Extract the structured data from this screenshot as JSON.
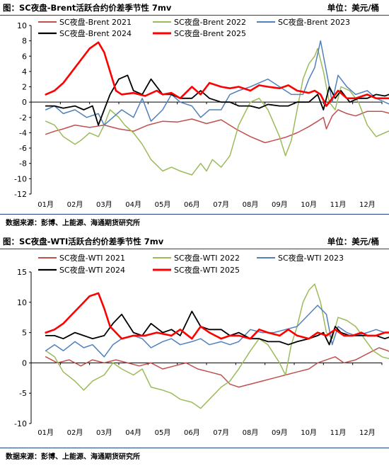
{
  "chart_data": [
    {
      "type": "line",
      "title": "图：SC夜盘-Brent活跃合约价差季节性 7mv",
      "unit": "单位：美元/桶",
      "source": "数据来源：彭博、上能源、海通期货研究所",
      "x_ticks": [
        "01月",
        "02月",
        "03月",
        "04月",
        "05月",
        "06月",
        "07月",
        "08月",
        "09月",
        "10月",
        "11月",
        "12月"
      ],
      "ylim": [
        -12,
        10
      ],
      "y_ticks": [
        10,
        8,
        6,
        4,
        2,
        0,
        -2,
        -4,
        -6,
        -8,
        -10,
        -12
      ],
      "legend_position": "top",
      "series": [
        {
          "name": "SC夜盘-Brent 2021",
          "color": "#c0504d",
          "width": 1.5,
          "x": [
            0.0,
            0.3,
            0.6,
            1.0,
            1.5,
            2.0,
            2.5,
            3.0,
            3.5,
            4.0,
            4.5,
            5.0,
            5.5,
            6.0,
            6.5,
            7.0,
            7.5,
            7.8,
            8.2,
            8.6,
            9.0,
            9.3,
            9.5,
            9.6,
            9.8,
            10.0,
            10.3,
            10.6,
            11.0,
            11.5,
            11.9
          ],
          "y": [
            -4.2,
            -3.8,
            -3.5,
            -3.0,
            -3.3,
            -3.0,
            -3.5,
            -3.8,
            -3.0,
            -2.5,
            -2.6,
            -2.2,
            -2.8,
            -2.3,
            -3.5,
            -4.5,
            -5.3,
            -5.0,
            -4.6,
            -4.0,
            -3.2,
            -2.5,
            -2.0,
            -3.5,
            -1.8,
            -1.0,
            -1.5,
            -1.8,
            -1.2,
            -1.2,
            -1.6
          ]
        },
        {
          "name": "SC夜盘-Brent 2022",
          "color": "#9bbb59",
          "width": 1.5,
          "x": [
            0.0,
            0.3,
            0.6,
            1.0,
            1.2,
            1.5,
            1.8,
            2.0,
            2.2,
            2.5,
            2.7,
            3.0,
            3.3,
            3.6,
            4.0,
            4.3,
            4.6,
            5.0,
            5.3,
            5.5,
            5.7,
            6.0,
            6.3,
            6.6,
            7.0,
            7.3,
            7.6,
            8.0,
            8.2,
            8.4,
            8.6,
            8.8,
            9.0,
            9.2,
            9.3,
            9.5,
            9.7,
            9.9,
            10.1,
            10.4,
            10.7,
            11.0,
            11.3,
            11.6,
            11.9
          ],
          "y": [
            -2.5,
            -3.0,
            -4.5,
            -5.5,
            -5.0,
            -4.0,
            -4.5,
            -3.0,
            -1.0,
            -2.0,
            -3.0,
            -4.0,
            -5.5,
            -7.5,
            -9.0,
            -8.5,
            -9.0,
            -9.5,
            -8.0,
            -9.0,
            -7.5,
            -8.5,
            -7.0,
            -3.0,
            0.0,
            0.5,
            -1.0,
            -4.5,
            -7.0,
            -5.0,
            -1.0,
            3.0,
            5.0,
            6.0,
            7.0,
            4.0,
            0.0,
            -1.0,
            2.0,
            1.5,
            0.0,
            -3.0,
            -4.5,
            -4.0,
            -3.5
          ]
        },
        {
          "name": "SC夜盘-Brent 2023",
          "color": "#4f81bd",
          "width": 1.5,
          "x": [
            0.0,
            0.3,
            0.6,
            1.0,
            1.4,
            1.8,
            2.0,
            2.3,
            2.6,
            3.0,
            3.3,
            3.6,
            4.0,
            4.3,
            4.6,
            5.0,
            5.3,
            5.6,
            6.0,
            6.3,
            6.6,
            7.0,
            7.3,
            7.6,
            8.0,
            8.4,
            8.8,
            9.0,
            9.2,
            9.4,
            9.6,
            9.8,
            10.0,
            10.3,
            10.6,
            11.0,
            11.3,
            11.6,
            11.9
          ],
          "y": [
            -1.0,
            -0.5,
            -1.5,
            -1.0,
            -2.0,
            -1.5,
            -3.0,
            -2.0,
            -1.0,
            -2.0,
            0.5,
            -2.5,
            -1.0,
            1.0,
            0.0,
            -0.5,
            -2.0,
            -1.0,
            -1.0,
            1.0,
            1.5,
            2.0,
            2.5,
            3.0,
            2.0,
            1.0,
            1.0,
            3.0,
            4.5,
            8.0,
            4.0,
            0.0,
            3.5,
            2.0,
            1.0,
            1.5,
            0.5,
            0.0,
            -0.5
          ]
        },
        {
          "name": "SC夜盘-Brent 2024",
          "color": "#000000",
          "width": 1.8,
          "x": [
            0.0,
            0.3,
            0.6,
            1.0,
            1.3,
            1.6,
            1.8,
            2.0,
            2.2,
            2.5,
            2.8,
            3.0,
            3.3,
            3.6,
            4.0,
            4.3,
            4.6,
            5.0,
            5.3,
            5.6,
            6.0,
            6.3,
            6.6,
            7.0,
            7.3,
            7.6,
            8.0,
            8.3,
            8.6,
            9.0,
            9.3,
            9.5,
            9.7,
            9.9,
            10.1,
            10.4,
            10.7,
            11.0,
            11.3,
            11.6,
            11.9
          ],
          "y": [
            -0.5,
            -0.5,
            -0.8,
            -0.5,
            -1.0,
            -0.5,
            -3.0,
            -1.0,
            1.0,
            3.0,
            3.5,
            1.5,
            1.0,
            3.0,
            1.0,
            1.0,
            0.5,
            0.5,
            1.5,
            0.5,
            0.0,
            0.0,
            -0.5,
            -0.5,
            -0.8,
            -0.3,
            -0.5,
            -0.5,
            0.0,
            0.0,
            1.0,
            -1.0,
            2.0,
            0.5,
            1.5,
            0.0,
            0.5,
            0.5,
            1.0,
            0.8,
            1.2
          ]
        },
        {
          "name": "SC夜盘-Brent 2025",
          "color": "#ff0000",
          "width": 2.6,
          "x": [
            0.0,
            0.3,
            0.6,
            0.9,
            1.2,
            1.5,
            1.8,
            2.0,
            2.2,
            2.4,
            2.6,
            3.0,
            3.4,
            3.8,
            4.0,
            4.3,
            4.6,
            5.0,
            5.3,
            5.6,
            6.0,
            6.3,
            6.6,
            7.0,
            7.3,
            7.6,
            8.0,
            8.3,
            8.6,
            9.0,
            9.2,
            9.4,
            9.6,
            9.8,
            10.0,
            10.3,
            10.6,
            11.0,
            11.3,
            11.6,
            11.9
          ],
          "y": [
            1.0,
            1.5,
            2.5,
            4.0,
            5.5,
            7.0,
            7.8,
            6.5,
            4.0,
            1.5,
            1.0,
            1.2,
            0.8,
            1.5,
            1.0,
            1.2,
            0.5,
            2.0,
            1.0,
            2.5,
            2.0,
            1.8,
            2.0,
            1.5,
            2.2,
            2.0,
            1.8,
            2.2,
            1.5,
            1.2,
            1.5,
            1.0,
            -0.5,
            0.5,
            1.5,
            0.5,
            0.5,
            1.0,
            0.5,
            0.5,
            0.5
          ]
        }
      ]
    },
    {
      "type": "line",
      "title": "图：SC夜盘-WTI活跃合约价差季节性 7mv",
      "unit": "单位：美元/桶",
      "source": "数据来源：彭博、上能源、海通期货研究所",
      "x_ticks": [
        "01月",
        "02月",
        "03月",
        "04月",
        "05月",
        "06月",
        "07月",
        "08月",
        "09月",
        "10月",
        "11月",
        "12月"
      ],
      "ylim": [
        -10,
        15
      ],
      "y_ticks": [
        15,
        10,
        5,
        0,
        -5,
        -10
      ],
      "legend_position": "top",
      "series": [
        {
          "name": "SC夜盘-WTI 2021",
          "color": "#c0504d",
          "width": 1.5,
          "x": [
            0.0,
            0.4,
            0.8,
            1.2,
            1.6,
            2.0,
            2.4,
            2.8,
            3.2,
            3.6,
            4.0,
            4.4,
            4.8,
            5.2,
            5.6,
            6.0,
            6.3,
            6.6,
            7.0,
            7.4,
            7.8,
            8.2,
            8.6,
            9.0,
            9.3,
            9.6,
            9.9,
            10.2,
            10.6,
            11.0,
            11.4,
            11.7,
            11.9
          ],
          "y": [
            1.0,
            0.0,
            0.5,
            -0.5,
            0.5,
            0.0,
            0.5,
            0.0,
            -0.5,
            0.0,
            -1.0,
            -0.5,
            0.0,
            -1.0,
            -1.5,
            -2.0,
            -3.5,
            -4.0,
            -3.5,
            -3.0,
            -2.5,
            -2.0,
            -1.5,
            -1.0,
            0.0,
            0.5,
            1.0,
            0.0,
            0.5,
            1.5,
            2.5,
            2.0,
            1.5
          ]
        },
        {
          "name": "SC夜盘-WTI 2022",
          "color": "#9bbb59",
          "width": 1.5,
          "x": [
            0.0,
            0.3,
            0.6,
            1.0,
            1.3,
            1.6,
            2.0,
            2.3,
            2.6,
            3.0,
            3.3,
            3.6,
            4.0,
            4.3,
            4.6,
            5.0,
            5.3,
            5.6,
            6.0,
            6.3,
            6.6,
            7.0,
            7.3,
            7.6,
            8.0,
            8.2,
            8.4,
            8.6,
            8.8,
            9.0,
            9.2,
            9.4,
            9.6,
            9.8,
            10.0,
            10.3,
            10.6,
            10.9,
            11.2,
            11.5,
            11.9
          ],
          "y": [
            2.0,
            1.0,
            -1.5,
            -3.0,
            -4.5,
            -3.0,
            -2.0,
            0.0,
            -1.0,
            -2.0,
            -1.0,
            -4.0,
            -4.5,
            -5.0,
            -6.0,
            -6.5,
            -7.5,
            -6.0,
            -4.0,
            -3.0,
            -1.0,
            2.0,
            4.0,
            3.0,
            0.0,
            -2.0,
            3.0,
            6.0,
            10.0,
            12.0,
            13.0,
            10.0,
            5.0,
            4.0,
            7.5,
            7.0,
            6.0,
            4.0,
            2.0,
            1.0,
            0.5
          ]
        },
        {
          "name": "SC夜盘-WTI 2023",
          "color": "#4f81bd",
          "width": 1.5,
          "x": [
            0.0,
            0.3,
            0.6,
            1.0,
            1.3,
            1.6,
            2.0,
            2.3,
            2.6,
            3.0,
            3.3,
            3.6,
            4.0,
            4.3,
            4.6,
            5.0,
            5.3,
            5.6,
            6.0,
            6.3,
            6.6,
            7.0,
            7.4,
            7.8,
            8.2,
            8.6,
            9.0,
            9.3,
            9.6,
            9.8,
            10.0,
            10.3,
            10.6,
            11.0,
            11.3,
            11.6,
            11.9
          ],
          "y": [
            2.0,
            3.0,
            2.0,
            3.5,
            2.5,
            3.0,
            1.0,
            3.0,
            4.0,
            4.5,
            4.0,
            2.5,
            3.5,
            4.0,
            3.0,
            3.5,
            4.0,
            3.0,
            3.5,
            3.0,
            3.5,
            5.5,
            5.0,
            5.0,
            5.5,
            6.0,
            8.0,
            9.5,
            8.0,
            3.0,
            6.0,
            5.0,
            4.5,
            5.0,
            5.5,
            5.0,
            5.0
          ]
        },
        {
          "name": "SC夜盘-WTI 2024",
          "color": "#000000",
          "width": 1.8,
          "x": [
            0.0,
            0.3,
            0.6,
            1.0,
            1.3,
            1.6,
            2.0,
            2.3,
            2.6,
            3.0,
            3.3,
            3.6,
            4.0,
            4.3,
            4.6,
            5.0,
            5.3,
            5.6,
            6.0,
            6.3,
            6.6,
            7.0,
            7.3,
            7.6,
            8.0,
            8.3,
            8.6,
            9.0,
            9.3,
            9.5,
            9.7,
            9.9,
            10.1,
            10.4,
            10.7,
            11.0,
            11.3,
            11.6,
            11.9
          ],
          "y": [
            4.5,
            4.5,
            4.0,
            5.0,
            4.5,
            4.0,
            4.5,
            6.5,
            8.0,
            5.0,
            4.5,
            6.5,
            5.0,
            5.5,
            4.5,
            8.5,
            6.0,
            5.5,
            5.5,
            4.5,
            5.0,
            4.0,
            4.0,
            3.5,
            3.5,
            3.0,
            3.5,
            4.0,
            4.5,
            5.0,
            3.0,
            6.0,
            5.0,
            4.5,
            4.5,
            4.5,
            4.5,
            4.0,
            4.5
          ]
        },
        {
          "name": "SC夜盘-WTI 2025",
          "color": "#ff0000",
          "width": 2.6,
          "x": [
            0.0,
            0.3,
            0.6,
            0.9,
            1.2,
            1.5,
            1.8,
            2.0,
            2.2,
            2.4,
            2.6,
            3.0,
            3.4,
            3.8,
            4.0,
            4.3,
            4.6,
            5.0,
            5.3,
            5.6,
            6.0,
            6.3,
            6.6,
            7.0,
            7.3,
            7.6,
            8.0,
            8.3,
            8.6,
            9.0,
            9.3,
            9.6,
            9.9,
            10.2,
            10.5,
            10.8,
            11.0,
            11.3,
            11.6,
            11.9
          ],
          "y": [
            5.0,
            5.5,
            6.5,
            8.0,
            9.5,
            11.0,
            11.5,
            9.0,
            6.0,
            5.0,
            4.0,
            4.5,
            4.5,
            5.0,
            4.8,
            4.5,
            5.5,
            4.0,
            6.0,
            5.0,
            4.0,
            4.5,
            4.5,
            4.0,
            5.5,
            5.0,
            4.5,
            5.5,
            4.5,
            4.0,
            5.0,
            4.5,
            5.5,
            4.5,
            4.5,
            5.0,
            4.5,
            4.5,
            5.0,
            5.0
          ]
        }
      ]
    }
  ]
}
